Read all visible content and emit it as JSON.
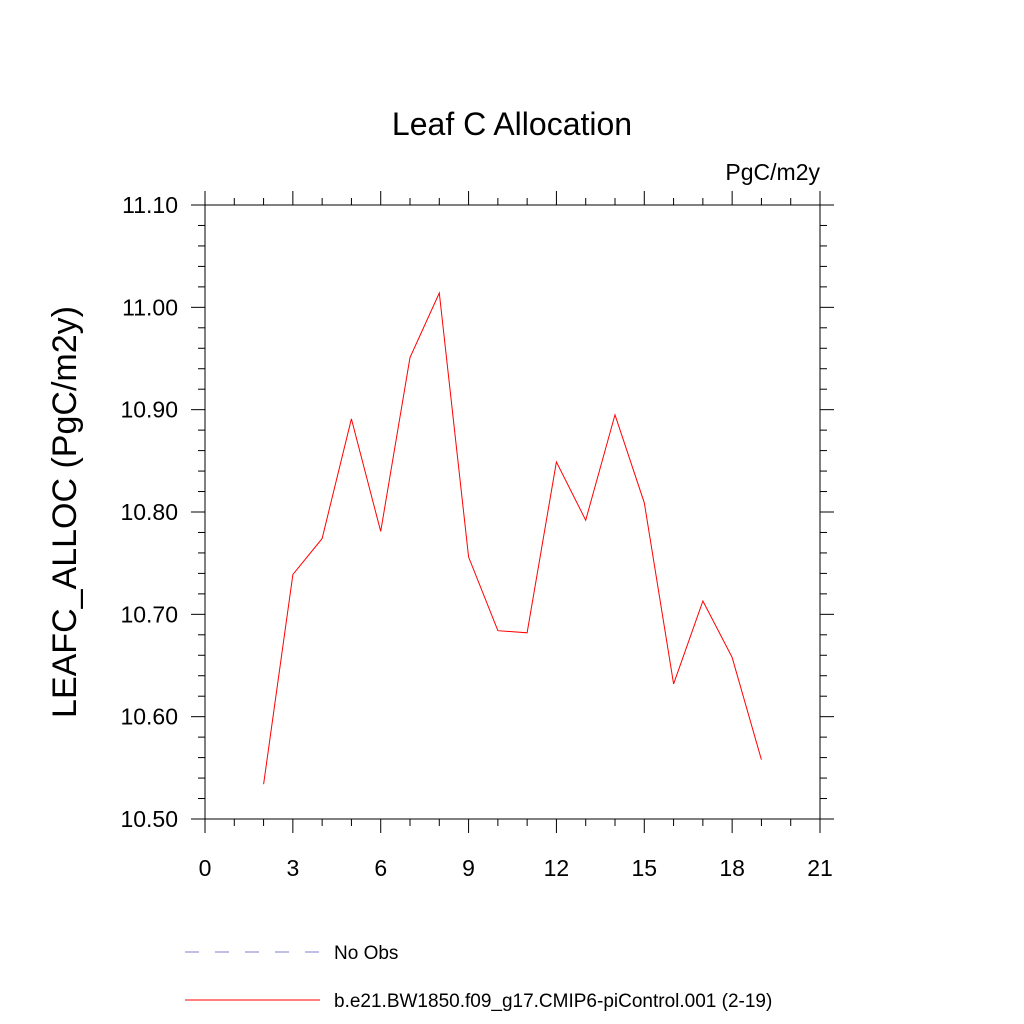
{
  "chart_data": {
    "type": "line",
    "title": "Leaf C Allocation",
    "units_label": "PgC/m2y",
    "xlabel": "",
    "ylabel": "LEAFC_ALLOC  (PgC/m2y)",
    "xlim": [
      0,
      21
    ],
    "ylim": [
      10.5,
      11.1
    ],
    "xticks": [
      0,
      3,
      6,
      9,
      12,
      15,
      18,
      21
    ],
    "xtick_labels": [
      "0",
      "3",
      "6",
      "9",
      "12",
      "15",
      "18",
      "21"
    ],
    "yticks": [
      10.5,
      10.6,
      10.7,
      10.8,
      10.9,
      11.0,
      11.1
    ],
    "ytick_labels": [
      "10.50",
      "10.60",
      "10.70",
      "10.80",
      "10.90",
      "11.00",
      "11.10"
    ],
    "grid": false,
    "legend_position": "bottom",
    "series": [
      {
        "name": "No Obs",
        "style": "dashed",
        "color": "#7f7fd0",
        "x": [],
        "y": []
      },
      {
        "name": "b.e21.BW1850.f09_g17.CMIP6-piControl.001 (2-19)",
        "style": "solid",
        "color": "#ff0000",
        "x": [
          2,
          3,
          4,
          5,
          6,
          7,
          8,
          9,
          10,
          11,
          12,
          13,
          14,
          15,
          16,
          17,
          18,
          19
        ],
        "y": [
          10.534,
          10.739,
          10.774,
          10.891,
          10.781,
          10.951,
          11.014,
          10.756,
          10.684,
          10.682,
          10.849,
          10.792,
          10.895,
          10.809,
          10.632,
          10.713,
          10.658,
          10.558
        ]
      }
    ]
  }
}
